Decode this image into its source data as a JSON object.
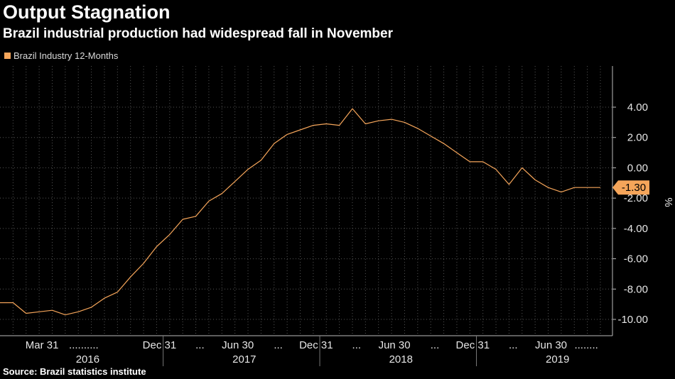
{
  "header": {
    "title": "Output Stagnation",
    "subtitle": "Brazil industrial production had widespread fall in November"
  },
  "legend": {
    "label": "Brazil Industry 12-Months"
  },
  "footer": {
    "source": "Source: Brazil statistics institute"
  },
  "colors": {
    "background": "#000000",
    "line": "#f5a55a",
    "grid": "#555555",
    "text": "#e6e6e6",
    "value_tag": "#f5a55a"
  },
  "chart_data": {
    "type": "line",
    "title": "Output Stagnation",
    "subtitle": "Brazil industrial production had widespread fall in November",
    "ylabel": "%",
    "xlabel": "",
    "ylim": [
      -11.0,
      5.2
    ],
    "y_ticks": [
      4.0,
      2.0,
      0.0,
      -2.0,
      -4.0,
      -6.0,
      -8.0,
      -10.0
    ],
    "y_tick_labels": [
      "4.00",
      "2.00",
      "0.00",
      "-2.00",
      "-4.00",
      "-6.00",
      "-8.00",
      "-10.00"
    ],
    "y_axis_side": "right",
    "grid": true,
    "legend_position": "top-left",
    "x_tick_labels": [
      {
        "label": "Mar 31",
        "month": 3
      },
      {
        "label": "Dec 31",
        "month": 12
      },
      {
        "label": "Jun 30",
        "month": 18
      },
      {
        "label": "Dec 31",
        "month": 24
      },
      {
        "label": "Jun 30",
        "month": 30
      },
      {
        "label": "Dec 31",
        "month": 36
      },
      {
        "label": "Jun 30",
        "month": 42
      }
    ],
    "x_dots": [
      {
        "label": "..........",
        "month": 6.2
      },
      {
        "label": "...",
        "month": 15.1
      },
      {
        "label": "...",
        "month": 21.1
      },
      {
        "label": "...",
        "month": 27.1
      },
      {
        "label": "...",
        "month": 33.1
      },
      {
        "label": "...",
        "month": 39.1
      },
      {
        "label": "........",
        "month": 44.7
      }
    ],
    "x_years": [
      {
        "label": "2016",
        "month": 6.5
      },
      {
        "label": "2017",
        "month": 18.5
      },
      {
        "label": "2018",
        "month": 30.5
      },
      {
        "label": "2019",
        "month": 42.5
      }
    ],
    "x_year_separators": [
      12.5,
      24.5,
      36.5
    ],
    "x_grid_months": [
      1,
      2,
      3,
      4,
      5,
      6,
      7,
      8,
      9,
      10,
      11,
      12,
      13,
      14,
      15,
      16,
      17,
      18,
      19,
      20,
      21,
      22,
      23,
      24,
      25,
      26,
      27,
      28,
      29,
      30,
      31,
      32,
      33,
      34,
      35,
      36,
      37,
      38,
      39,
      40,
      41,
      42,
      43,
      44,
      45,
      46
    ],
    "series": [
      {
        "name": "Brazil Industry 12-Months",
        "x_months": [
          0,
          1,
          2,
          3,
          4,
          5,
          6,
          7,
          8,
          9,
          10,
          11,
          12,
          13,
          14,
          15,
          16,
          17,
          18,
          19,
          20,
          21,
          22,
          23,
          24,
          25,
          26,
          27,
          28,
          29,
          30,
          31,
          32,
          33,
          34,
          35,
          36,
          37,
          38,
          39,
          40,
          41,
          42,
          43,
          44,
          45,
          46
        ],
        "values": [
          -8.9,
          -8.9,
          -9.6,
          -9.5,
          -9.4,
          -9.7,
          -9.5,
          -9.2,
          -8.6,
          -8.2,
          -7.2,
          -6.3,
          -5.2,
          -4.4,
          -3.4,
          -3.2,
          -2.2,
          -1.7,
          -0.9,
          -0.1,
          0.5,
          1.6,
          2.2,
          2.5,
          2.8,
          2.9,
          2.8,
          3.9,
          2.9,
          3.1,
          3.2,
          3.0,
          2.6,
          2.1,
          1.6,
          1.0,
          0.4,
          0.4,
          -0.1,
          -1.1,
          0.0,
          -0.8,
          -1.3,
          -1.6,
          -1.3,
          -1.3,
          -1.3
        ]
      }
    ],
    "last_value_label": "-1.30",
    "last_value": -1.3
  }
}
